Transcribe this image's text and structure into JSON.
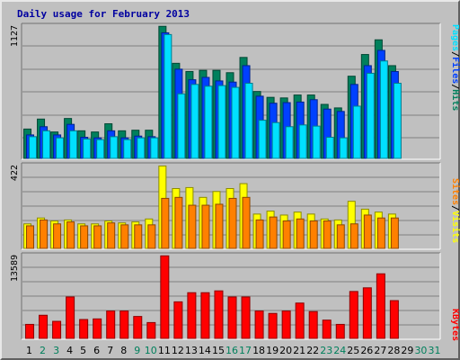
{
  "title": "Daily usage for February 2013",
  "colors": {
    "background": "#c0c0c0",
    "hits": "#00805c",
    "files": "#0040ff",
    "pages": "#00e0ff",
    "visits": "#ffff00",
    "sites": "#ff8000",
    "kbytes": "#ff0000",
    "weekend_label": "#00805c",
    "weekday_label": "#000000"
  },
  "chart_data": [
    {
      "type": "bar",
      "panel": "top",
      "ymax_label": "1127",
      "ylim": [
        0,
        1127
      ],
      "right_label": [
        "Pages",
        "/",
        "Files",
        "/",
        "Hits"
      ],
      "categories": [
        "1",
        "2",
        "3",
        "4",
        "5",
        "6",
        "7",
        "8",
        "9",
        "10",
        "11",
        "12",
        "13",
        "14",
        "15",
        "16",
        "17",
        "18",
        "19",
        "20",
        "21",
        "22",
        "23",
        "24",
        "25",
        "26",
        "27",
        "28"
      ],
      "series": [
        {
          "name": "Hits",
          "values": [
            250,
            335,
            225,
            340,
            235,
            225,
            295,
            235,
            240,
            240,
            1125,
            810,
            740,
            750,
            750,
            730,
            860,
            570,
            520,
            515,
            540,
            540,
            460,
            430,
            700,
            885,
            1010,
            790
          ]
        },
        {
          "name": "Files",
          "values": [
            200,
            270,
            200,
            290,
            180,
            175,
            235,
            175,
            190,
            185,
            1070,
            760,
            670,
            690,
            660,
            650,
            790,
            530,
            470,
            475,
            480,
            500,
            420,
            400,
            630,
            790,
            920,
            740
          ]
        },
        {
          "name": "Pages",
          "values": [
            185,
            235,
            175,
            235,
            165,
            160,
            185,
            160,
            175,
            175,
            1055,
            550,
            630,
            615,
            620,
            605,
            640,
            325,
            305,
            270,
            285,
            275,
            180,
            175,
            445,
            725,
            830,
            640
          ]
        }
      ]
    },
    {
      "type": "bar",
      "panel": "middle",
      "ymax_label": "422",
      "ylim": [
        0,
        422
      ],
      "right_label": [
        "Sites",
        "/",
        "Visits"
      ],
      "categories": [
        "1",
        "2",
        "3",
        "4",
        "5",
        "6",
        "7",
        "8",
        "9",
        "10",
        "11",
        "12",
        "13",
        "14",
        "15",
        "16",
        "17",
        "18",
        "19",
        "20",
        "21",
        "22",
        "23",
        "24",
        "25",
        "26",
        "27",
        "28"
      ],
      "series": [
        {
          "name": "Visits",
          "values": [
            125,
            155,
            140,
            145,
            125,
            125,
            140,
            130,
            135,
            150,
            420,
            305,
            310,
            260,
            290,
            305,
            330,
            175,
            190,
            170,
            185,
            175,
            150,
            145,
            240,
            200,
            185,
            175
          ]
        },
        {
          "name": "Sites",
          "values": [
            115,
            145,
            125,
            135,
            115,
            115,
            130,
            120,
            120,
            120,
            255,
            260,
            220,
            220,
            225,
            255,
            260,
            145,
            160,
            140,
            150,
            140,
            140,
            120,
            125,
            170,
            155,
            155
          ]
        }
      ]
    },
    {
      "type": "bar",
      "panel": "bottom",
      "ymax_label": "13589",
      "ylim": [
        0,
        13589
      ],
      "right_label": [
        "KBytes"
      ],
      "categories": [
        "1",
        "2",
        "3",
        "4",
        "5",
        "6",
        "7",
        "8",
        "9",
        "10",
        "11",
        "12",
        "13",
        "14",
        "15",
        "16",
        "17",
        "18",
        "19",
        "20",
        "21",
        "22",
        "23",
        "24",
        "25",
        "26",
        "27",
        "28"
      ],
      "series": [
        {
          "name": "KBytes",
          "values": [
            2300,
            3800,
            2800,
            6800,
            3100,
            3200,
            4500,
            4500,
            3600,
            2600,
            13550,
            6000,
            7500,
            7500,
            7800,
            6800,
            6800,
            4500,
            4100,
            4500,
            5800,
            4400,
            3000,
            2300,
            7700,
            8300,
            10600,
            6200
          ]
        }
      ]
    }
  ],
  "day_labels": [
    "1",
    "2",
    "3",
    "4",
    "5",
    "6",
    "7",
    "8",
    "9",
    "10",
    "11",
    "12",
    "13",
    "14",
    "15",
    "16",
    "17",
    "18",
    "19",
    "20",
    "21",
    "22",
    "23",
    "24",
    "25",
    "26",
    "27",
    "28",
    "29",
    "30",
    "31"
  ],
  "weekend_days": [
    "2",
    "3",
    "9",
    "10",
    "16",
    "17",
    "23",
    "24",
    "30",
    "31"
  ]
}
